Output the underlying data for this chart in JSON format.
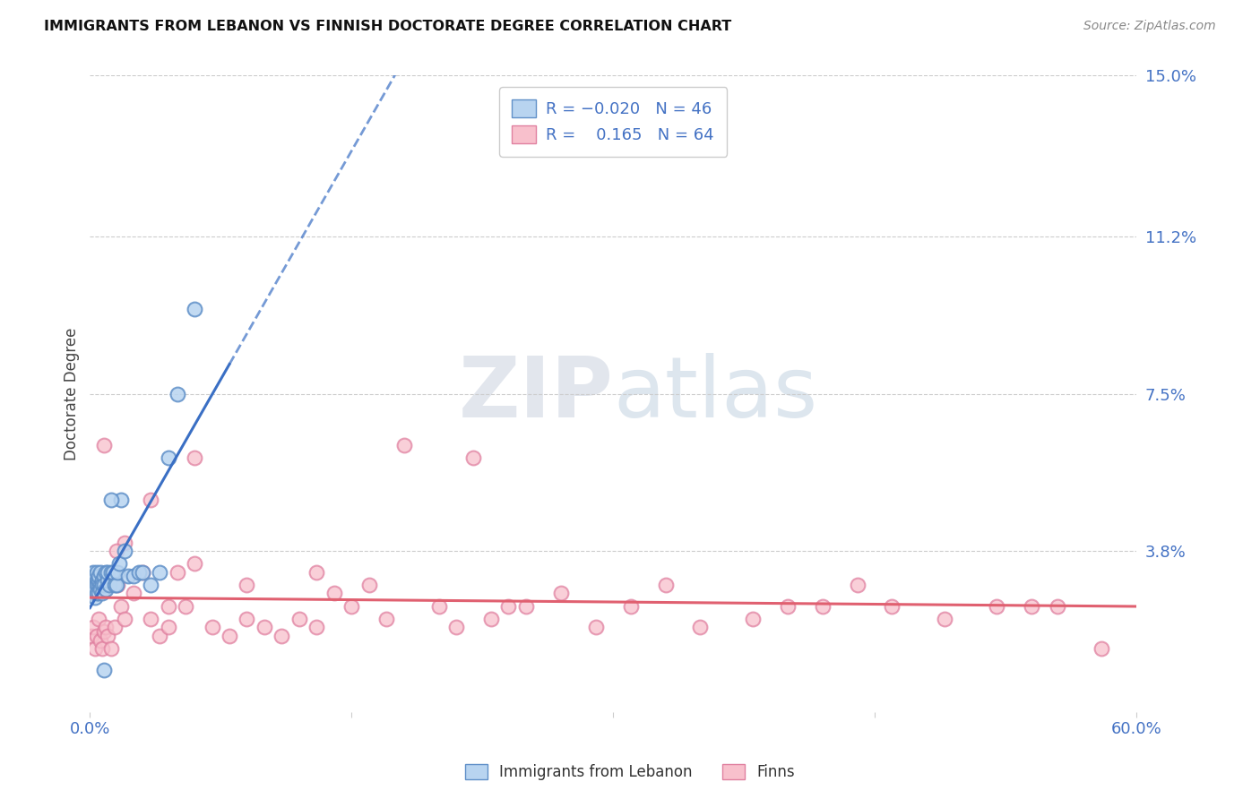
{
  "title": "IMMIGRANTS FROM LEBANON VS FINNISH DOCTORATE DEGREE CORRELATION CHART",
  "source": "Source: ZipAtlas.com",
  "ylabel": "Doctorate Degree",
  "xlim": [
    0.0,
    0.6
  ],
  "ylim": [
    0.0,
    0.15
  ],
  "xticks": [
    0.0,
    0.15,
    0.3,
    0.45,
    0.6
  ],
  "xtick_labels": [
    "0.0%",
    "",
    "",
    "",
    "60.0%"
  ],
  "ytick_labels_right": [
    "15.0%",
    "11.2%",
    "7.5%",
    "3.8%",
    ""
  ],
  "ytick_positions_right": [
    0.15,
    0.112,
    0.075,
    0.038,
    0.0
  ],
  "background_color": "#ffffff",
  "grid_color": "#cccccc",
  "blue_line_color": "#3a6fc4",
  "pink_line_color": "#e06070",
  "blue_scatter_x": [
    0.001,
    0.002,
    0.002,
    0.003,
    0.003,
    0.003,
    0.004,
    0.004,
    0.004,
    0.004,
    0.005,
    0.005,
    0.005,
    0.005,
    0.006,
    0.006,
    0.006,
    0.007,
    0.007,
    0.007,
    0.008,
    0.008,
    0.009,
    0.009,
    0.01,
    0.01,
    0.011,
    0.012,
    0.013,
    0.014,
    0.015,
    0.016,
    0.017,
    0.018,
    0.02,
    0.022,
    0.025,
    0.028,
    0.03,
    0.035,
    0.04,
    0.045,
    0.05,
    0.06,
    0.008,
    0.012
  ],
  "blue_scatter_y": [
    0.03,
    0.028,
    0.033,
    0.032,
    0.029,
    0.027,
    0.031,
    0.03,
    0.028,
    0.033,
    0.03,
    0.031,
    0.032,
    0.028,
    0.033,
    0.03,
    0.029,
    0.031,
    0.03,
    0.028,
    0.032,
    0.03,
    0.033,
    0.029,
    0.031,
    0.033,
    0.03,
    0.033,
    0.033,
    0.03,
    0.03,
    0.033,
    0.035,
    0.05,
    0.038,
    0.032,
    0.032,
    0.033,
    0.033,
    0.03,
    0.033,
    0.06,
    0.075,
    0.095,
    0.01,
    0.05
  ],
  "pink_scatter_x": [
    0.001,
    0.002,
    0.003,
    0.004,
    0.005,
    0.006,
    0.007,
    0.008,
    0.009,
    0.01,
    0.012,
    0.014,
    0.016,
    0.018,
    0.02,
    0.025,
    0.03,
    0.035,
    0.04,
    0.045,
    0.05,
    0.055,
    0.06,
    0.07,
    0.08,
    0.09,
    0.1,
    0.11,
    0.12,
    0.13,
    0.14,
    0.15,
    0.16,
    0.17,
    0.18,
    0.2,
    0.21,
    0.22,
    0.23,
    0.24,
    0.25,
    0.27,
    0.29,
    0.31,
    0.33,
    0.35,
    0.38,
    0.4,
    0.42,
    0.44,
    0.46,
    0.49,
    0.52,
    0.54,
    0.555,
    0.58,
    0.035,
    0.06,
    0.09,
    0.13,
    0.02,
    0.015,
    0.008,
    0.045
  ],
  "pink_scatter_y": [
    0.018,
    0.02,
    0.015,
    0.018,
    0.022,
    0.017,
    0.015,
    0.019,
    0.02,
    0.018,
    0.015,
    0.02,
    0.03,
    0.025,
    0.022,
    0.028,
    0.033,
    0.022,
    0.018,
    0.02,
    0.033,
    0.025,
    0.06,
    0.02,
    0.018,
    0.022,
    0.02,
    0.018,
    0.022,
    0.02,
    0.028,
    0.025,
    0.03,
    0.022,
    0.063,
    0.025,
    0.02,
    0.06,
    0.022,
    0.025,
    0.025,
    0.028,
    0.02,
    0.025,
    0.03,
    0.02,
    0.022,
    0.025,
    0.025,
    0.03,
    0.025,
    0.022,
    0.025,
    0.025,
    0.025,
    0.015,
    0.05,
    0.035,
    0.03,
    0.033,
    0.04,
    0.038,
    0.063,
    0.025
  ]
}
